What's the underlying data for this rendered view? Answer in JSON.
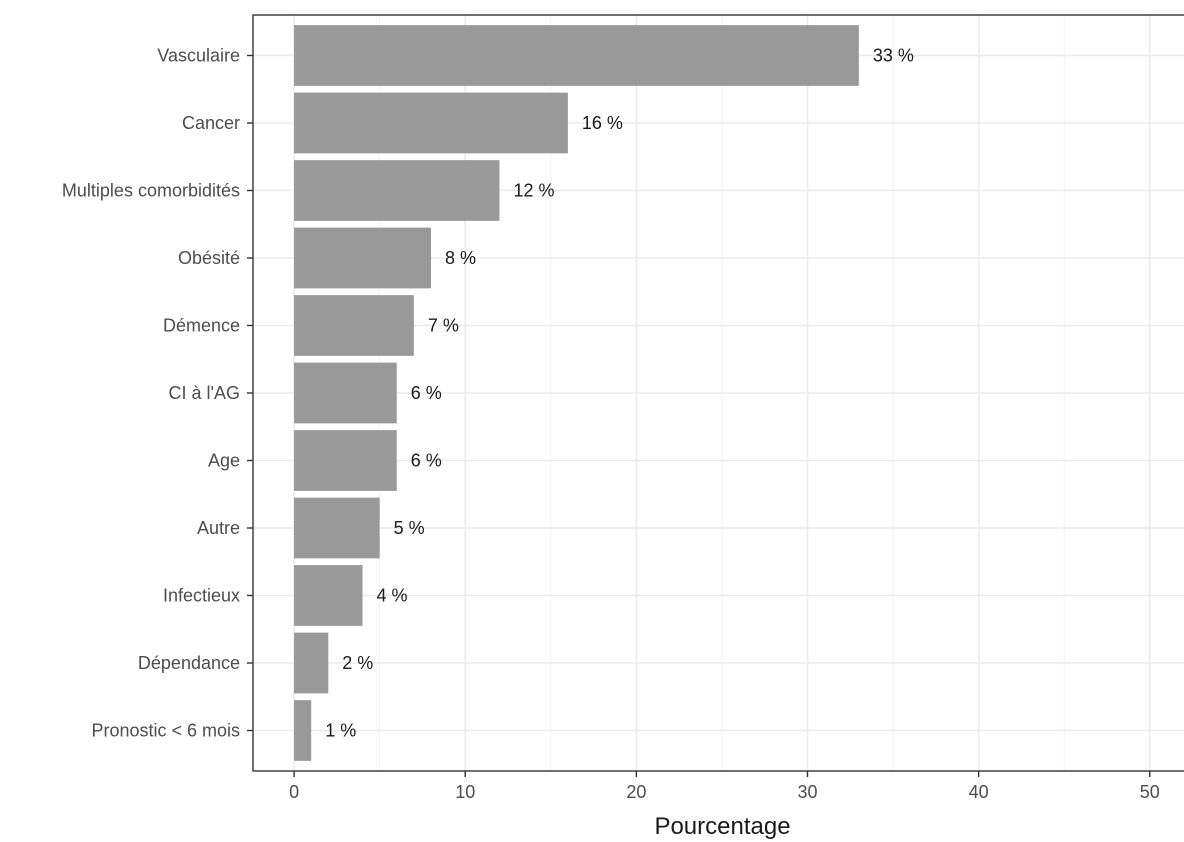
{
  "chart_data": {
    "type": "bar",
    "orientation": "horizontal",
    "categories": [
      "Vasculaire",
      "Cancer",
      "Multiples comorbidités",
      "Obésité",
      "Démence",
      "CI à l'AG",
      "Age",
      "Autre",
      "Infectieux",
      "Dépendance",
      "Pronostic < 6 mois"
    ],
    "values": [
      33,
      16,
      12,
      8,
      7,
      6,
      6,
      5,
      4,
      2,
      1
    ],
    "data_labels": [
      "33 %",
      "16 %",
      "12 %",
      "8 %",
      "7 %",
      "6 %",
      "6 %",
      "5 %",
      "4 %",
      "2 %",
      "1 %"
    ],
    "xlabel": "Pourcentage",
    "ylabel": "",
    "xlim": [
      -2.4,
      52
    ],
    "x_ticks": [
      0,
      10,
      20,
      30,
      40,
      50
    ],
    "grid": true,
    "legend": "none",
    "colors": {
      "bar": "#999999",
      "grid_major": "#ebebeb",
      "grid_minor": "#f2f2f2",
      "panel_border": "#333333"
    }
  }
}
